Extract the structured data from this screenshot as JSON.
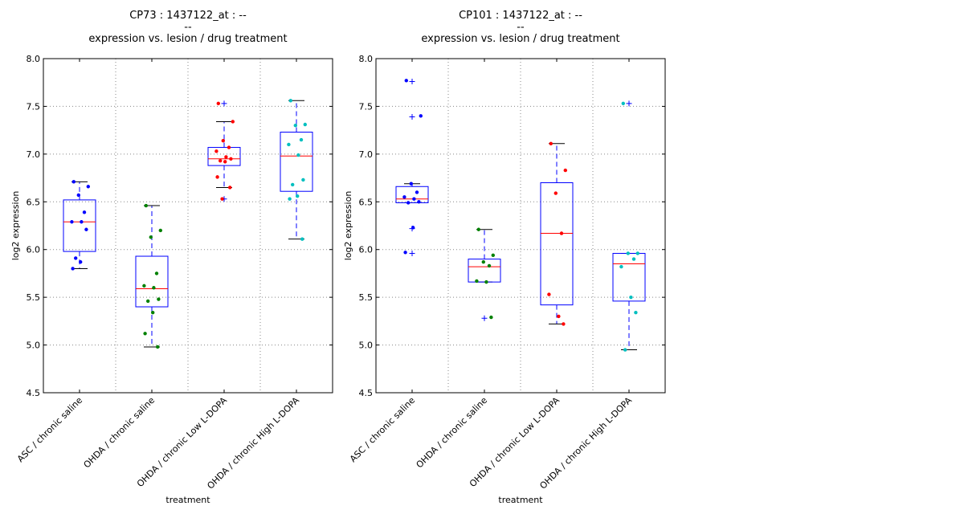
{
  "chart_data": [
    {
      "type": "box",
      "title_lines": [
        "CP73 : 1437122_at : --",
        "--",
        "expression vs. lesion / drug treatment"
      ],
      "xlabel": "treatment",
      "ylabel": "log2 expression",
      "ylim": [
        4.5,
        8.0
      ],
      "yticks": [
        "4.5",
        "5.0",
        "5.5",
        "6.0",
        "6.5",
        "7.0",
        "7.5",
        "8.0"
      ],
      "grid": true,
      "categories": [
        "ASC / chronic saline",
        "OHDA / chronic saline",
        "OHDA / chronic Low L-DOPA",
        "OHDA / chronic High L-DOPA"
      ],
      "groups": [
        {
          "color": "#0000ff",
          "whisker_low": 5.8,
          "q1": 5.98,
          "median": 6.29,
          "q3": 6.52,
          "whisker_high": 6.71,
          "outliers": [],
          "points": [
            6.71,
            6.66,
            6.57,
            6.39,
            6.29,
            6.29,
            6.21,
            5.91,
            5.87,
            5.8
          ]
        },
        {
          "color": "#008000",
          "whisker_low": 4.98,
          "q1": 5.4,
          "median": 5.59,
          "q3": 5.93,
          "whisker_high": 6.46,
          "outliers": [],
          "points": [
            6.46,
            6.2,
            6.13,
            5.75,
            5.62,
            5.6,
            5.48,
            5.46,
            5.34,
            5.12,
            4.98
          ]
        },
        {
          "color": "#ff0000",
          "whisker_low": 6.65,
          "q1": 6.88,
          "median": 6.95,
          "q3": 7.07,
          "whisker_high": 7.34,
          "outliers": [
            7.53,
            6.53
          ],
          "points": [
            7.53,
            7.34,
            7.14,
            7.07,
            7.03,
            6.97,
            6.95,
            6.93,
            6.92,
            6.76,
            6.65,
            6.53
          ]
        },
        {
          "color": "#00bfbf",
          "whisker_low": 6.11,
          "q1": 6.61,
          "median": 6.98,
          "q3": 7.23,
          "whisker_high": 7.56,
          "outliers": [],
          "points": [
            7.56,
            7.31,
            7.3,
            7.15,
            7.1,
            6.99,
            6.73,
            6.68,
            6.56,
            6.53,
            6.11
          ]
        }
      ]
    },
    {
      "type": "box",
      "title_lines": [
        "CP101 : 1437122_at : --",
        "--",
        "expression vs. lesion / drug treatment"
      ],
      "xlabel": "treatment",
      "ylabel": "log2 expression",
      "ylim": [
        4.5,
        8.0
      ],
      "yticks": [
        "4.5",
        "5.0",
        "5.5",
        "6.0",
        "6.5",
        "7.0",
        "7.5",
        "8.0"
      ],
      "grid": true,
      "categories": [
        "ASC / chronic saline",
        "OHDA / chronic saline",
        "OHDA / chronic Low L-DOPA",
        "OHDA / chronic High L-DOPA"
      ],
      "groups": [
        {
          "color": "#0000ff",
          "whisker_low": 6.49,
          "q1": 6.49,
          "median": 6.53,
          "q3": 6.66,
          "whisker_high": 6.69,
          "outliers": [
            7.76,
            7.39,
            6.22,
            5.96
          ],
          "points": [
            7.77,
            7.4,
            6.69,
            6.6,
            6.55,
            6.53,
            6.5,
            6.49,
            6.23,
            5.97
          ]
        },
        {
          "color": "#008000",
          "whisker_low": 5.66,
          "q1": 5.66,
          "median": 5.82,
          "q3": 5.9,
          "whisker_high": 6.21,
          "outliers": [
            5.28
          ],
          "points": [
            6.21,
            5.94,
            5.87,
            5.83,
            5.67,
            5.66,
            5.29
          ]
        },
        {
          "color": "#ff0000",
          "whisker_low": 5.22,
          "q1": 5.42,
          "median": 6.17,
          "q3": 6.7,
          "whisker_high": 7.11,
          "outliers": [],
          "points": [
            7.11,
            6.83,
            6.59,
            6.17,
            5.53,
            5.3,
            5.22
          ]
        },
        {
          "color": "#00bfbf",
          "whisker_low": 4.95,
          "q1": 5.46,
          "median": 5.85,
          "q3": 5.96,
          "whisker_high": 5.96,
          "outliers": [
            7.53
          ],
          "points": [
            7.53,
            5.96,
            5.96,
            5.9,
            5.82,
            5.5,
            5.34,
            4.95
          ]
        }
      ]
    }
  ]
}
